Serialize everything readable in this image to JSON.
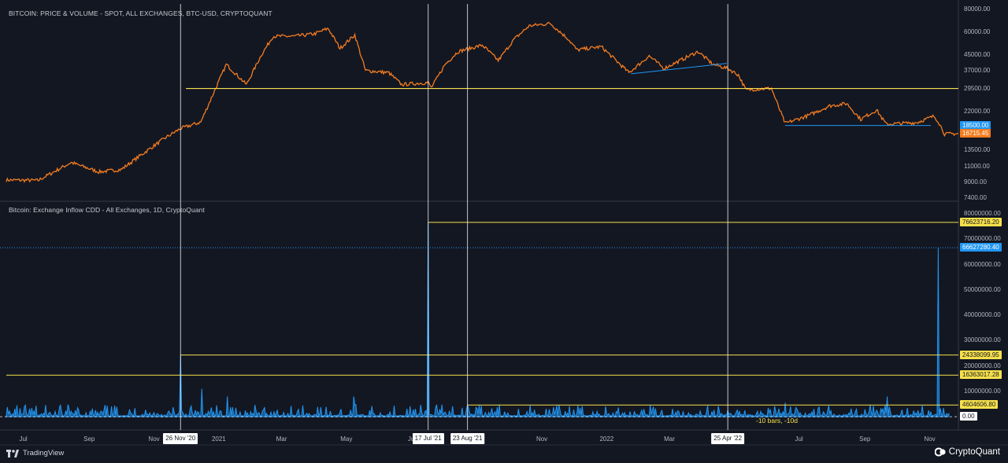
{
  "colors": {
    "background": "#131722",
    "price_line": "#f57c1f",
    "inflow_fill": "#2196f3",
    "level_line": "#f6e04b",
    "cursor_line": "#ffffff",
    "trend_line": "#2196f3"
  },
  "chart_data": [
    {
      "type": "line",
      "title": "BITCOIN: PRICE & VOLUME - SPOT, ALL EXCHANGES, BTC-USD, CRYPTOQUANT",
      "y_scale": "log",
      "ylim": [
        7400,
        80000
      ],
      "yticks": [
        "80000.00",
        "60000.00",
        "45000.00",
        "37000.00",
        "29500.00",
        "22000.00",
        "13500.00",
        "11000.00",
        "9000.00",
        "7400.00"
      ],
      "yticks_values": [
        80000,
        60000,
        45000,
        37000,
        29500,
        22000,
        13500,
        11000,
        9000,
        7400
      ],
      "xlim": [
        "2020-06-15",
        "2022-11-28"
      ],
      "x": [
        "2020-06-15",
        "2020-07-15",
        "2020-08-15",
        "2020-09-10",
        "2020-10-01",
        "2020-10-21",
        "2020-11-10",
        "2020-11-26",
        "2020-12-15",
        "2021-01-08",
        "2021-01-27",
        "2021-02-10",
        "2021-02-21",
        "2021-03-13",
        "2021-04-01",
        "2021-04-14",
        "2021-04-25",
        "2021-05-09",
        "2021-05-19",
        "2021-06-10",
        "2021-06-22",
        "2021-07-17",
        "2021-07-20",
        "2021-08-02",
        "2021-08-14",
        "2021-09-06",
        "2021-09-21",
        "2021-10-06",
        "2021-10-20",
        "2021-11-09",
        "2021-11-26",
        "2021-12-04",
        "2021-12-27",
        "2022-01-22",
        "2022-02-10",
        "2022-02-24",
        "2022-03-28",
        "2022-04-11",
        "2022-04-25",
        "2022-05-05",
        "2022-05-12",
        "2022-06-05",
        "2022-06-13",
        "2022-06-18",
        "2022-07-10",
        "2022-07-30",
        "2022-08-15",
        "2022-08-28",
        "2022-09-12",
        "2022-09-21",
        "2022-10-20",
        "2022-11-05",
        "2022-11-09",
        "2022-11-15",
        "2022-11-28"
      ],
      "values": [
        9300,
        9250,
        11600,
        10300,
        10600,
        12900,
        15600,
        17800,
        19300,
        40000,
        31000,
        45000,
        57000,
        57000,
        58800,
        63000,
        49000,
        58000,
        37000,
        36000,
        31000,
        31800,
        29800,
        40000,
        47000,
        51000,
        42000,
        55000,
        65000,
        67000,
        55000,
        48000,
        50000,
        36000,
        44500,
        38000,
        47000,
        40000,
        38000,
        35000,
        29000,
        29600,
        22400,
        19000,
        21000,
        23700,
        24400,
        20000,
        22500,
        18800,
        19200,
        20800,
        19500,
        16600,
        16700
      ],
      "horizontal_levels": [
        29500
      ],
      "trendlines": [
        {
          "from": [
            "2022-01-24",
            35500
          ],
          "to": [
            "2022-04-24",
            40500
          ]
        },
        {
          "from": [
            "2022-06-18",
            18500
          ],
          "to": [
            "2022-11-02",
            18500
          ]
        }
      ],
      "value_labels": [
        {
          "text": "18500.00",
          "value": 18500,
          "color": "#2196f3"
        },
        {
          "text": "16715.45",
          "value": 16715.45,
          "color": "#f57c1f"
        }
      ]
    },
    {
      "type": "area",
      "title": "Bitcoin: Exchange Inflow CDD - All Exchanges, 1D, CryptoQuant",
      "ylim": [
        -4000000,
        80000000
      ],
      "yticks": [
        "80000000.00",
        "70000000.00",
        "60000000.00",
        "50000000.00",
        "40000000.00",
        "30000000.00",
        "20000000.00",
        "10000000.00",
        "0.00"
      ],
      "yticks_values": [
        80000000,
        70000000,
        60000000,
        50000000,
        40000000,
        30000000,
        20000000,
        10000000,
        0
      ],
      "spikes": [
        {
          "date": "2020-11-26",
          "value": 24338099.95
        },
        {
          "date": "2020-12-16",
          "value": 11000000
        },
        {
          "date": "2021-01-09",
          "value": 8000000
        },
        {
          "date": "2021-05-08",
          "value": 8000000
        },
        {
          "date": "2021-07-17",
          "value": 76623716.2
        },
        {
          "date": "2021-08-23",
          "value": 4600000
        },
        {
          "date": "2022-06-18",
          "value": 5500000
        },
        {
          "date": "2022-09-22",
          "value": 8000000
        },
        {
          "date": "2022-11-09",
          "value": 66627280.4
        }
      ],
      "horizontal_levels": [
        76623716.2,
        24338099.95,
        16363017.28,
        4604606.8
      ],
      "value_labels": [
        {
          "text": "76623716.20",
          "value": 76623716.2,
          "color": "#f6e04b"
        },
        {
          "text": "66627280.40",
          "value": 66627280.4,
          "color": "#2196f3"
        },
        {
          "text": "24338099.95",
          "value": 24338099.95,
          "color": "#f6e04b"
        },
        {
          "text": "16363017.28",
          "value": 16363017.28,
          "color": "#f6e04b"
        },
        {
          "text": "4604606.80",
          "value": 4604606.8,
          "color": "#f6e04b"
        },
        {
          "text": "0.00",
          "value": 0,
          "color": "#ffffff"
        }
      ],
      "annotation": "-10 bars, -10d"
    }
  ],
  "x_axis": {
    "ticks": [
      {
        "label": "Jul",
        "date": "2020-07-01"
      },
      {
        "label": "Sep",
        "date": "2020-09-01"
      },
      {
        "label": "Nov",
        "date": "2020-11-01"
      },
      {
        "label": "2021",
        "date": "2021-01-01"
      },
      {
        "label": "Mar",
        "date": "2021-03-01"
      },
      {
        "label": "May",
        "date": "2021-05-01"
      },
      {
        "label": "Ju",
        "date": "2021-07-01"
      },
      {
        "label": "Nov",
        "date": "2021-11-01"
      },
      {
        "label": "2022",
        "date": "2022-01-01"
      },
      {
        "label": "Mar",
        "date": "2022-03-01"
      },
      {
        "label": "Jul",
        "date": "2022-07-01"
      },
      {
        "label": "Sep",
        "date": "2022-09-01"
      },
      {
        "label": "Nov",
        "date": "2022-11-01"
      }
    ],
    "date_tags": [
      {
        "label": "26 Nov '20",
        "date": "2020-11-26"
      },
      {
        "label": "17 Jul '21",
        "date": "2021-07-17"
      },
      {
        "label": "23 Aug '21",
        "date": "2021-08-23"
      },
      {
        "label": "25 Apr '22",
        "date": "2022-04-25"
      }
    ]
  },
  "footer": {
    "left_brand": "TradingView",
    "right_brand": "CryptoQuant"
  }
}
